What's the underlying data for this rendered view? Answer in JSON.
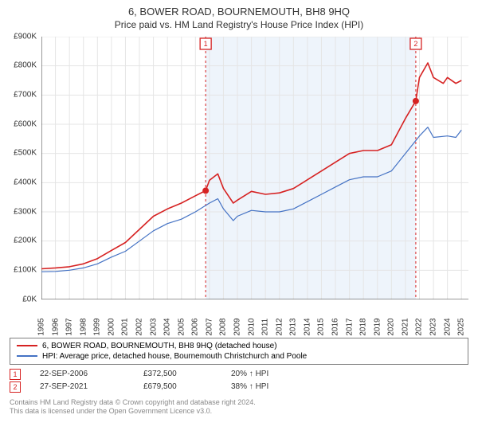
{
  "title": "6, BOWER ROAD, BOURNEMOUTH, BH8 9HQ",
  "subtitle": "Price paid vs. HM Land Registry's House Price Index (HPI)",
  "chart": {
    "type": "line",
    "background_color": "#ffffff",
    "axis_color": "#333333",
    "grid_color": "#e5e5e5",
    "shade_color": "#eef4fb",
    "y": {
      "min": 0,
      "max": 900,
      "step": 100,
      "prefix": "£",
      "suffix": "K"
    },
    "x": {
      "years": [
        1995,
        1996,
        1997,
        1998,
        1999,
        2000,
        2001,
        2002,
        2003,
        2004,
        2005,
        2006,
        2007,
        2008,
        2009,
        2010,
        2011,
        2012,
        2013,
        2014,
        2015,
        2016,
        2017,
        2018,
        2019,
        2020,
        2021,
        2022,
        2023,
        2024,
        2025
      ]
    },
    "series": [
      {
        "name": "price_paid",
        "label": "6, BOWER ROAD, BOURNEMOUTH, BH8 9HQ (detached house)",
        "color": "#d62222",
        "width": 1.6,
        "points": [
          [
            1995,
            105
          ],
          [
            1996,
            108
          ],
          [
            1997,
            112
          ],
          [
            1998,
            122
          ],
          [
            1999,
            140
          ],
          [
            2000,
            168
          ],
          [
            2001,
            195
          ],
          [
            2002,
            240
          ],
          [
            2003,
            285
          ],
          [
            2004,
            310
          ],
          [
            2005,
            330
          ],
          [
            2006,
            355
          ],
          [
            2006.73,
            372.5
          ],
          [
            2007,
            408
          ],
          [
            2007.6,
            430
          ],
          [
            2008,
            380
          ],
          [
            2008.7,
            330
          ],
          [
            2009,
            340
          ],
          [
            2010,
            370
          ],
          [
            2011,
            360
          ],
          [
            2012,
            365
          ],
          [
            2013,
            380
          ],
          [
            2014,
            410
          ],
          [
            2015,
            440
          ],
          [
            2016,
            470
          ],
          [
            2017,
            500
          ],
          [
            2018,
            510
          ],
          [
            2019,
            510
          ],
          [
            2020,
            530
          ],
          [
            2021,
            620
          ],
          [
            2021.74,
            679.5
          ],
          [
            2022,
            760
          ],
          [
            2022.6,
            810
          ],
          [
            2023,
            760
          ],
          [
            2023.7,
            740
          ],
          [
            2024,
            760
          ],
          [
            2024.6,
            740
          ],
          [
            2025,
            750
          ]
        ]
      },
      {
        "name": "hpi",
        "label": "HPI: Average price, detached house, Bournemouth Christchurch and Poole",
        "color": "#4472c4",
        "width": 1.2,
        "points": [
          [
            1995,
            95
          ],
          [
            1996,
            96
          ],
          [
            1997,
            100
          ],
          [
            1998,
            108
          ],
          [
            1999,
            122
          ],
          [
            2000,
            145
          ],
          [
            2001,
            165
          ],
          [
            2002,
            200
          ],
          [
            2003,
            235
          ],
          [
            2004,
            260
          ],
          [
            2005,
            275
          ],
          [
            2006,
            300
          ],
          [
            2007,
            330
          ],
          [
            2007.6,
            345
          ],
          [
            2008,
            310
          ],
          [
            2008.7,
            270
          ],
          [
            2009,
            285
          ],
          [
            2010,
            305
          ],
          [
            2011,
            300
          ],
          [
            2012,
            300
          ],
          [
            2013,
            310
          ],
          [
            2014,
            335
          ],
          [
            2015,
            360
          ],
          [
            2016,
            385
          ],
          [
            2017,
            410
          ],
          [
            2018,
            420
          ],
          [
            2019,
            420
          ],
          [
            2020,
            440
          ],
          [
            2021,
            500
          ],
          [
            2022,
            560
          ],
          [
            2022.6,
            590
          ],
          [
            2023,
            555
          ],
          [
            2024,
            560
          ],
          [
            2024.6,
            555
          ],
          [
            2025,
            580
          ]
        ]
      }
    ],
    "markers": [
      {
        "n": "1",
        "x": 2006.73,
        "y": 372.5,
        "dot_color": "#d62222",
        "date": "22-SEP-2006",
        "price": "£372,500",
        "delta": "20% ↑ HPI"
      },
      {
        "n": "2",
        "x": 2021.74,
        "y": 679.5,
        "dot_color": "#d62222",
        "date": "27-SEP-2021",
        "price": "£679,500",
        "delta": "38% ↑ HPI"
      }
    ]
  },
  "footer": {
    "line1": "Contains HM Land Registry data © Crown copyright and database right 2024.",
    "line2": "This data is licensed under the Open Government Licence v3.0."
  }
}
